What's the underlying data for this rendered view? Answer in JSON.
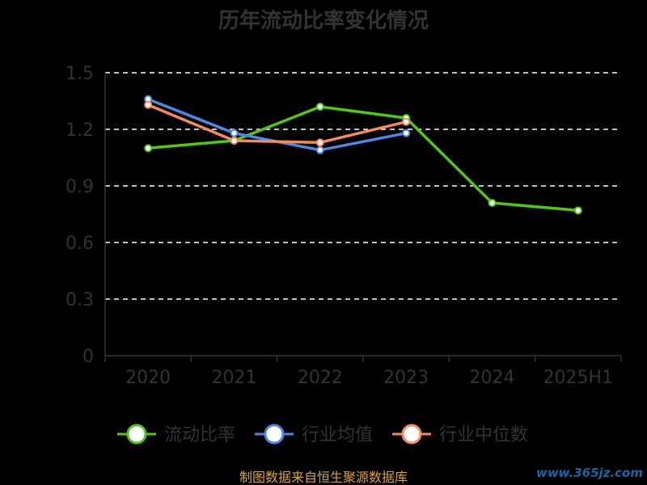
{
  "chart_data": {
    "type": "line",
    "title": "历年流动比率变化情况",
    "categories": [
      "2020",
      "2021",
      "2022",
      "2023",
      "2024",
      "2025H1"
    ],
    "y_ticks": [
      "0",
      "0.3",
      "0.6",
      "0.9",
      "1.2",
      "1.5"
    ],
    "ylim": [
      0,
      1.5
    ],
    "grid": true,
    "legend_position": "bottom",
    "series": [
      {
        "name": "流动比率",
        "color": "#52c41a",
        "values": [
          1.1,
          1.14,
          1.32,
          1.26,
          0.81,
          0.77
        ]
      },
      {
        "name": "行业均值",
        "color": "#4f87e0",
        "values": [
          1.36,
          1.18,
          1.09,
          1.18,
          null,
          null
        ]
      },
      {
        "name": "行业中位数",
        "color": "#f58a5c",
        "values": [
          1.33,
          1.14,
          1.13,
          1.24,
          null,
          null
        ]
      }
    ]
  },
  "footer": {
    "source": "制图数据来自恒生聚源数据库",
    "watermark": "www.365jz.com"
  }
}
